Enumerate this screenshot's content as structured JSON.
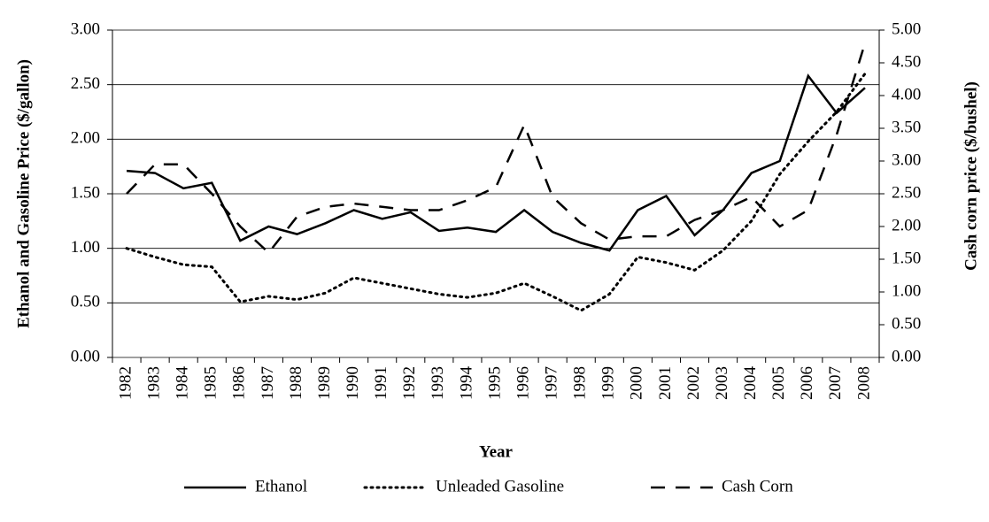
{
  "chart_data": {
    "type": "line",
    "xlabel": "Year",
    "ylabel": "Ethanol and Gasoline Price ($/gallon)",
    "y2label": "Cash corn price ($/bushel)",
    "categories": [
      "1982",
      "1983",
      "1984",
      "1985",
      "1986",
      "1987",
      "1988",
      "1989",
      "1990",
      "1991",
      "1992",
      "1993",
      "1994",
      "1995",
      "1996",
      "1997",
      "1998",
      "1999",
      "2000",
      "2001",
      "2002",
      "2003",
      "2004",
      "2005",
      "2006",
      "2007",
      "2008"
    ],
    "series": [
      {
        "name": "Ethanol",
        "color": "#000000",
        "style": "solid",
        "axis": "y",
        "values": [
          1.71,
          1.69,
          1.55,
          1.6,
          1.07,
          1.2,
          1.13,
          1.23,
          1.35,
          1.27,
          1.33,
          1.16,
          1.19,
          1.15,
          1.35,
          1.15,
          1.05,
          0.98,
          1.35,
          1.48,
          1.12,
          1.35,
          1.69,
          1.8,
          2.58,
          2.24,
          2.47
        ]
      },
      {
        "name": "Unleaded Gasoline",
        "color": "#000000",
        "style": "dotted",
        "axis": "y",
        "values": [
          1.0,
          0.92,
          0.85,
          0.83,
          0.51,
          0.56,
          0.53,
          0.59,
          0.73,
          0.68,
          0.63,
          0.58,
          0.55,
          0.59,
          0.68,
          0.56,
          0.43,
          0.58,
          0.92,
          0.87,
          0.8,
          0.98,
          1.25,
          1.68,
          1.98,
          2.25,
          2.6
        ]
      },
      {
        "name": "Cash Corn",
        "color": "#000000",
        "style": "dashed",
        "axis": "y2",
        "values": [
          2.5,
          2.95,
          2.95,
          2.5,
          2.0,
          1.6,
          2.15,
          2.3,
          2.35,
          2.3,
          2.25,
          2.25,
          2.4,
          2.6,
          3.55,
          2.45,
          2.05,
          1.8,
          1.85,
          1.85,
          2.1,
          2.25,
          2.45,
          2.0,
          2.25,
          3.4,
          4.8
        ]
      }
    ],
    "ylim": [
      0,
      3
    ],
    "yticks": [
      {
        "value": 0,
        "label": "0.00"
      },
      {
        "value": 0.5,
        "label": "0.50"
      },
      {
        "value": 1,
        "label": "1.00"
      },
      {
        "value": 1.5,
        "label": "1.50"
      },
      {
        "value": 2,
        "label": "2.00"
      },
      {
        "value": 2.5,
        "label": "2.50"
      },
      {
        "value": 3,
        "label": "3.00"
      }
    ],
    "y2lim": [
      0,
      5
    ],
    "y2ticks": [
      {
        "value": 0,
        "label": "0.00"
      },
      {
        "value": 0.5,
        "label": "0.50"
      },
      {
        "value": 1,
        "label": "1.00"
      },
      {
        "value": 1.5,
        "label": "1.50"
      },
      {
        "value": 2,
        "label": "2.00"
      },
      {
        "value": 2.5,
        "label": "2.50"
      },
      {
        "value": 3,
        "label": "3.00"
      },
      {
        "value": 3.5,
        "label": "3.50"
      },
      {
        "value": 4,
        "label": "4.00"
      },
      {
        "value": 4.5,
        "label": "4.50"
      },
      {
        "value": 5,
        "label": "5.00"
      }
    ],
    "grid": true,
    "legend": "bottom"
  }
}
